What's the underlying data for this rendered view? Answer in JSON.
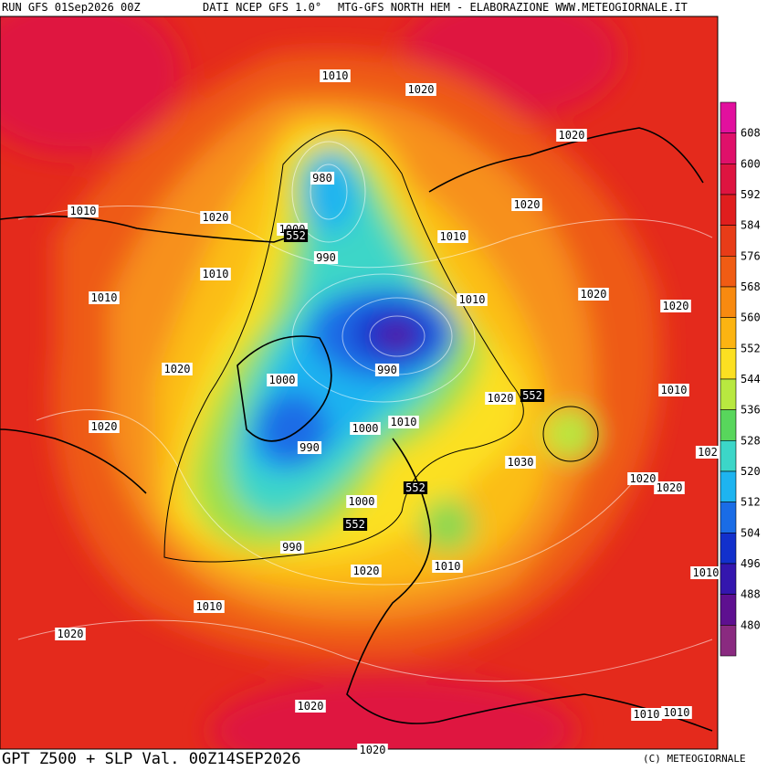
{
  "header": {
    "run": "RUN GFS 01Sep2026 00Z",
    "source": "DATI NCEP GFS 1.0°",
    "credit": "MTG-GFS NORTH HEM - ELABORAZIONE WWW.METEOGIORNALE.IT"
  },
  "footer": {
    "title": "GPT Z500 + SLP Val. 00Z14SEP2026",
    "copyright": "(C) METEOGIORNALE"
  },
  "colorbar": {
    "labels": [
      "608",
      "600",
      "592",
      "584",
      "576",
      "568",
      "560",
      "552",
      "544",
      "536",
      "528",
      "520",
      "512",
      "504",
      "496",
      "488",
      "480"
    ],
    "colors": [
      "#e2109e",
      "#e0106a",
      "#de1440",
      "#e01e1e",
      "#e83c18",
      "#f05c14",
      "#f88a10",
      "#fcb412",
      "#fce022",
      "#b8e840",
      "#58d65c",
      "#3cd6c8",
      "#1eb4f0",
      "#1a6ce6",
      "#1230cc",
      "#3416ae",
      "#5e1090",
      "#8a2a80"
    ]
  },
  "isobar_labels": [
    "1010",
    "1020",
    "1020",
    "980",
    "1010",
    "1020",
    "1020",
    "1000",
    "990",
    "1010",
    "1010",
    "1010",
    "1010",
    "1020",
    "1020",
    "990",
    "1020",
    "1000",
    "1020",
    "1010",
    "1020",
    "1000",
    "1010",
    "990",
    "102",
    "1030",
    "1020",
    "1020",
    "1000",
    "990",
    "1020",
    "1010",
    "1010",
    "1010",
    "1020",
    "1020",
    "1010",
    "1010",
    "1020"
  ],
  "height_labels": [
    "552",
    "552",
    "552",
    "552"
  ]
}
